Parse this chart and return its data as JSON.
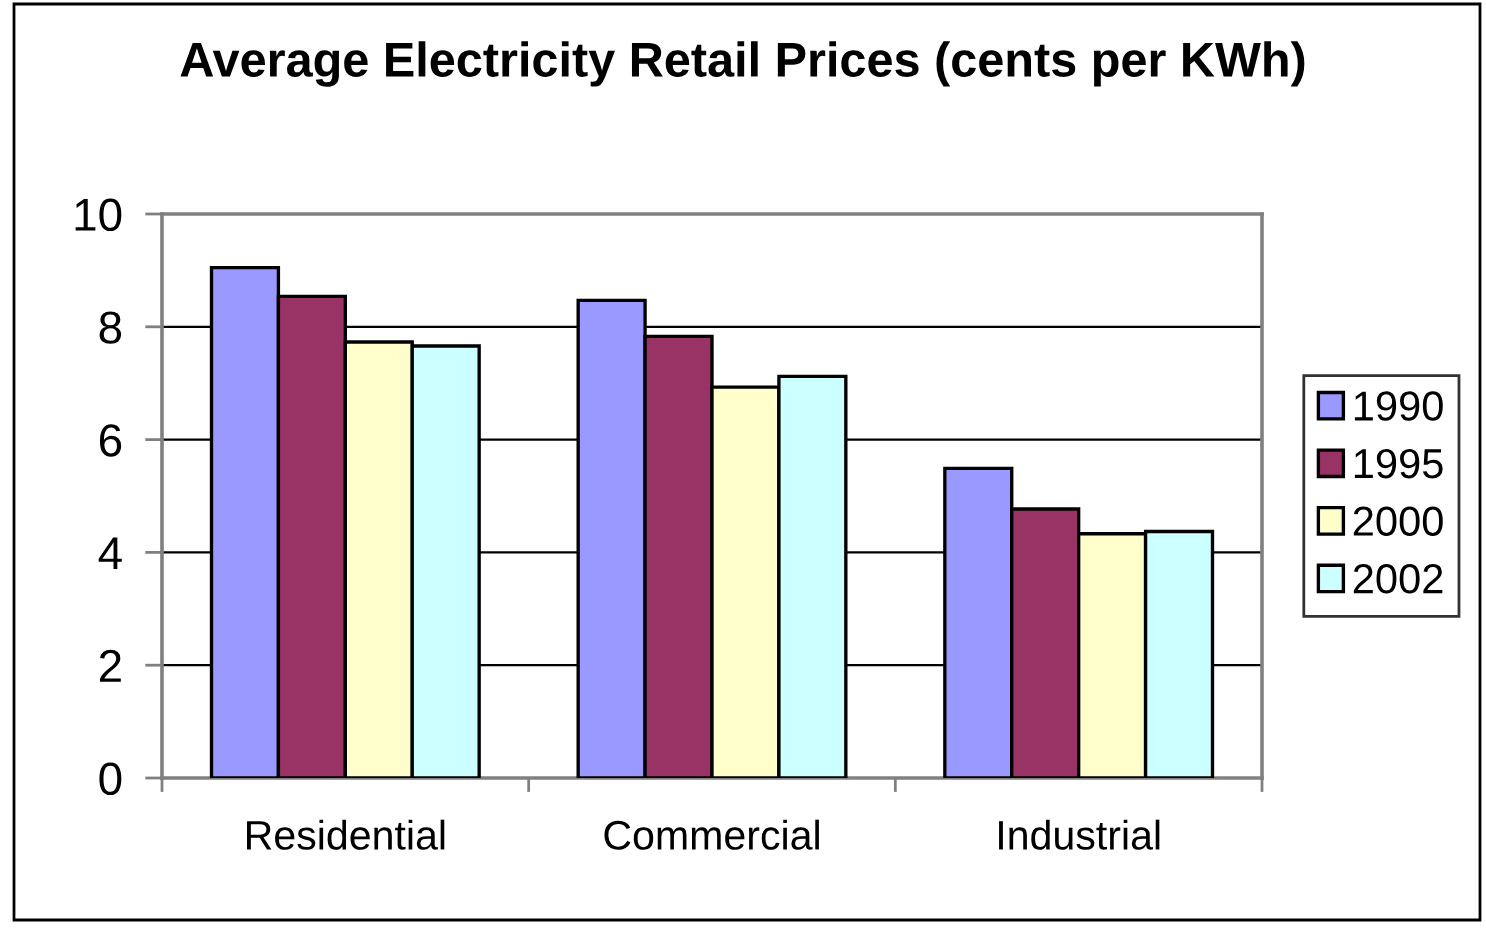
{
  "chart_data": {
    "type": "bar",
    "title": "Average Electricity Retail Prices (cents per KWh)",
    "categories": [
      "Residential",
      "Commercial",
      "Industrial"
    ],
    "series": [
      {
        "name": "1990",
        "color": "#9999ff",
        "values": [
          9.05,
          8.47,
          5.49
        ]
      },
      {
        "name": "1995",
        "color": "#993366",
        "values": [
          8.54,
          7.83,
          4.77
        ]
      },
      {
        "name": "2000",
        "color": "#ffffcc",
        "values": [
          7.73,
          6.93,
          4.33
        ]
      },
      {
        "name": "2002",
        "color": "#ccffff",
        "values": [
          7.66,
          7.12,
          4.37
        ]
      }
    ],
    "ylim": [
      0,
      10
    ],
    "yticks": [
      0,
      2,
      4,
      6,
      8,
      10
    ],
    "grid": "y",
    "legend": "right"
  }
}
